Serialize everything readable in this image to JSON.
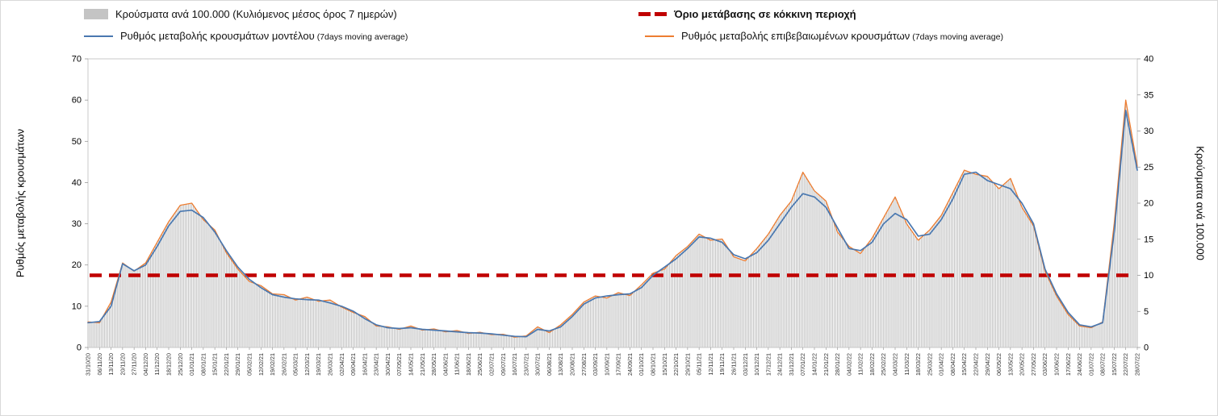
{
  "legend": {
    "bars": {
      "label": "Κρούσματα ανά 100.000 (Κυλιόμενος μέσος όρος 7 ημερών)"
    },
    "threshold": {
      "label": "Όριο μετάβασης σε κόκκινη περιοχή"
    },
    "model": {
      "label": "Ρυθμός μεταβολής κρουσμάτων μοντέλου",
      "sublabel": "(7days moving average)"
    },
    "confirmed": {
      "label": "Ρυθμός μεταβολής επιβεβαιωμένων κρουσμάτων",
      "sublabel": "(7days moving average)"
    }
  },
  "axes": {
    "left_title": "Ρυθμός μεταβολής κρουσμάτων",
    "right_title": "Κρούσματα ανά 100.000",
    "left_ticks": [
      0,
      10,
      20,
      30,
      40,
      50,
      60,
      70
    ],
    "right_ticks": [
      0,
      5,
      10,
      15,
      20,
      25,
      30,
      35,
      40
    ]
  },
  "colors": {
    "bar": "#c4c4c4",
    "model": "#4a78b0",
    "confirmed": "#ED7D31",
    "threshold": "#C00000",
    "frame": "#c9c9c9",
    "axis_text": "#000000",
    "tick_text": "#303030"
  },
  "chart_data": {
    "type": "combo_bar_line",
    "left_ylim": [
      0,
      70
    ],
    "right_ylim": [
      0,
      40
    ],
    "x": [
      "31/10/20",
      "06/11/20",
      "13/11/20",
      "20/11/20",
      "27/11/20",
      "04/12/20",
      "11/12/20",
      "18/12/20",
      "25/12/20",
      "01/01/21",
      "08/01/21",
      "15/01/21",
      "22/01/21",
      "29/01/21",
      "05/02/21",
      "12/02/21",
      "19/02/21",
      "26/02/21",
      "05/03/21",
      "12/03/21",
      "19/03/21",
      "26/03/21",
      "02/04/21",
      "09/04/21",
      "16/04/21",
      "23/04/21",
      "30/04/21",
      "07/05/21",
      "14/05/21",
      "21/05/21",
      "28/05/21",
      "04/06/21",
      "11/06/21",
      "18/06/21",
      "25/06/21",
      "02/07/21",
      "09/07/21",
      "16/07/21",
      "23/07/21",
      "30/07/21",
      "06/08/21",
      "13/08/21",
      "20/08/21",
      "27/08/21",
      "03/09/21",
      "10/09/21",
      "17/09/21",
      "24/09/21",
      "01/10/21",
      "08/10/21",
      "15/10/21",
      "22/10/21",
      "29/10/21",
      "05/11/21",
      "12/11/21",
      "19/11/21",
      "26/11/21",
      "03/12/21",
      "10/12/21",
      "17/12/21",
      "24/12/21",
      "31/12/21",
      "07/01/22",
      "14/01/22",
      "21/01/22",
      "28/01/22",
      "04/02/22",
      "11/02/22",
      "18/02/22",
      "25/02/22",
      "04/03/22",
      "11/03/22",
      "18/03/22",
      "25/03/22",
      "01/04/22",
      "08/04/22",
      "15/04/22",
      "22/04/22",
      "29/04/22",
      "06/05/22",
      "13/05/22",
      "20/05/22",
      "27/05/22",
      "03/06/22",
      "10/06/22",
      "17/06/22",
      "24/06/22",
      "01/07/22",
      "08/07/22",
      "15/07/22",
      "22/07/22",
      "28/07/22"
    ],
    "series": [
      {
        "key": "bars",
        "name": "Κρούσματα ανά 100.000 (Κυλιόμενος μέσος όρος 7 ημερών)",
        "type": "bar",
        "axis": "right",
        "values": [
          3.5,
          3.4,
          6.3,
          11.7,
          10.6,
          11.7,
          14.6,
          17.4,
          19.7,
          20,
          17.7,
          16.3,
          13.1,
          10.9,
          9.1,
          8.6,
          7.4,
          7.3,
          6.6,
          7,
          6.4,
          6.6,
          5.6,
          4.9,
          4.3,
          3,
          2.9,
          2.5,
          3,
          2.4,
          2.6,
          2.2,
          2.3,
          1.9,
          2.1,
          1.8,
          1.8,
          1.4,
          1.6,
          2.9,
          2.1,
          3.1,
          4.6,
          6.3,
          7.1,
          6.9,
          7.6,
          7.2,
          8.7,
          10.3,
          10.9,
          12.7,
          14,
          15.7,
          14.9,
          15,
          12.6,
          12,
          13.7,
          15.7,
          18.3,
          20.3,
          24.3,
          21.7,
          20.3,
          16,
          14,
          13,
          15.1,
          18,
          20.9,
          17.1,
          14.9,
          16.3,
          18.3,
          21.4,
          24.6,
          24,
          23.7,
          22,
          23.4,
          19.4,
          16.9,
          10.6,
          7.1,
          4.6,
          3,
          2.7,
          3.5,
          17.1,
          34.3,
          25.1
        ]
      },
      {
        "key": "model",
        "name": "Ρυθμός μεταβολής κρουσμάτων μοντέλου (7days moving average)",
        "type": "line",
        "axis": "left",
        "values": [
          6,
          6.3,
          10,
          20.3,
          18.6,
          20,
          24.5,
          29.5,
          33,
          33.3,
          31.5,
          28,
          23.5,
          19.5,
          16.5,
          14.5,
          12.8,
          12.2,
          11.8,
          11.6,
          11.5,
          10.8,
          10,
          8.8,
          7,
          5.5,
          4.8,
          4.6,
          4.8,
          4.4,
          4.2,
          4,
          3.8,
          3.6,
          3.5,
          3.3,
          3,
          2.7,
          2.6,
          4.4,
          4,
          5,
          7.5,
          10.5,
          12,
          12.5,
          12.8,
          13,
          14.5,
          17.5,
          19.5,
          21.5,
          24,
          26.8,
          26.5,
          25.5,
          22.5,
          21.5,
          23,
          26,
          30,
          34,
          37.3,
          36.5,
          34,
          29,
          24,
          23.5,
          25.5,
          30,
          32.5,
          31,
          27,
          27.5,
          31,
          36,
          42,
          42.5,
          40.5,
          39.5,
          38.5,
          35,
          30,
          19,
          13,
          8.5,
          5.5,
          5,
          6,
          28,
          57.5,
          43
        ]
      },
      {
        "key": "confirmed",
        "name": "Ρυθμός μεταβολής επιβεβαιωμένων κρουσμάτων (7days moving average)",
        "type": "line",
        "axis": "left",
        "values": [
          6.2,
          6,
          11,
          20.5,
          18.5,
          20.5,
          25.5,
          30.5,
          34.5,
          35,
          31,
          28.5,
          23,
          19,
          16,
          15,
          13,
          12.8,
          11.5,
          12.2,
          11.2,
          11.5,
          9.8,
          8.5,
          7.5,
          5.2,
          5,
          4.4,
          5.2,
          4.2,
          4.5,
          3.8,
          4.1,
          3.4,
          3.7,
          3.1,
          3.2,
          2.5,
          2.8,
          5,
          3.6,
          5.5,
          8,
          11,
          12.5,
          12,
          13.3,
          12.6,
          15.2,
          18,
          19,
          22.3,
          24.5,
          27.5,
          26,
          26.3,
          22,
          21,
          24,
          27.5,
          32,
          35.5,
          42.5,
          38,
          35.5,
          28,
          24.5,
          22.8,
          26.5,
          31.5,
          36.5,
          30,
          26,
          28.5,
          32,
          37.5,
          43,
          42,
          41.5,
          38.5,
          41,
          34,
          29.5,
          18.5,
          12.5,
          8,
          5.2,
          4.8,
          6.2,
          30,
          60,
          44
        ]
      },
      {
        "key": "threshold",
        "name": "Όριο μετάβασης σε κόκκινη περιοχή",
        "type": "threshold",
        "axis": "left",
        "value": 17.5
      }
    ]
  }
}
